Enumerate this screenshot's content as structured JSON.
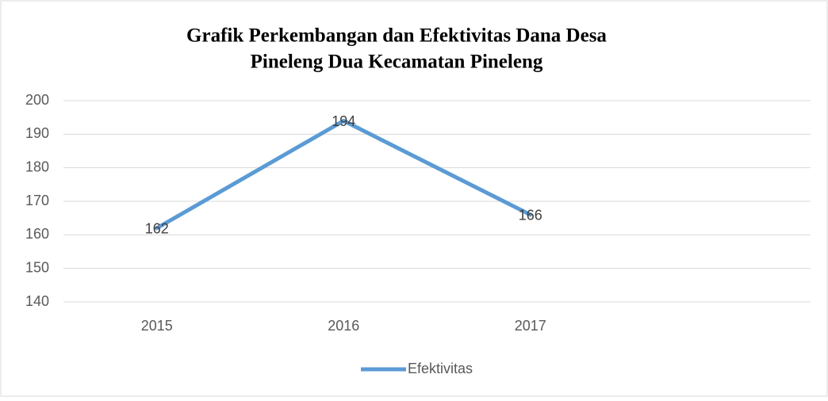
{
  "chart_data": {
    "type": "line",
    "title": [
      "Grafik Perkembangan dan Efektivitas Dana Desa",
      "Pineleng Dua Kecamatan Pineleng"
    ],
    "categories": [
      "2015",
      "2016",
      "2017",
      null
    ],
    "series": [
      {
        "name": "Efektivitas",
        "color": "#5b9bd5",
        "values": [
          162,
          194,
          166,
          null
        ]
      }
    ],
    "ylim": [
      140,
      200
    ],
    "yticks": [
      140,
      150,
      160,
      170,
      180,
      190,
      200
    ],
    "grid": true,
    "legend": "bottom"
  }
}
